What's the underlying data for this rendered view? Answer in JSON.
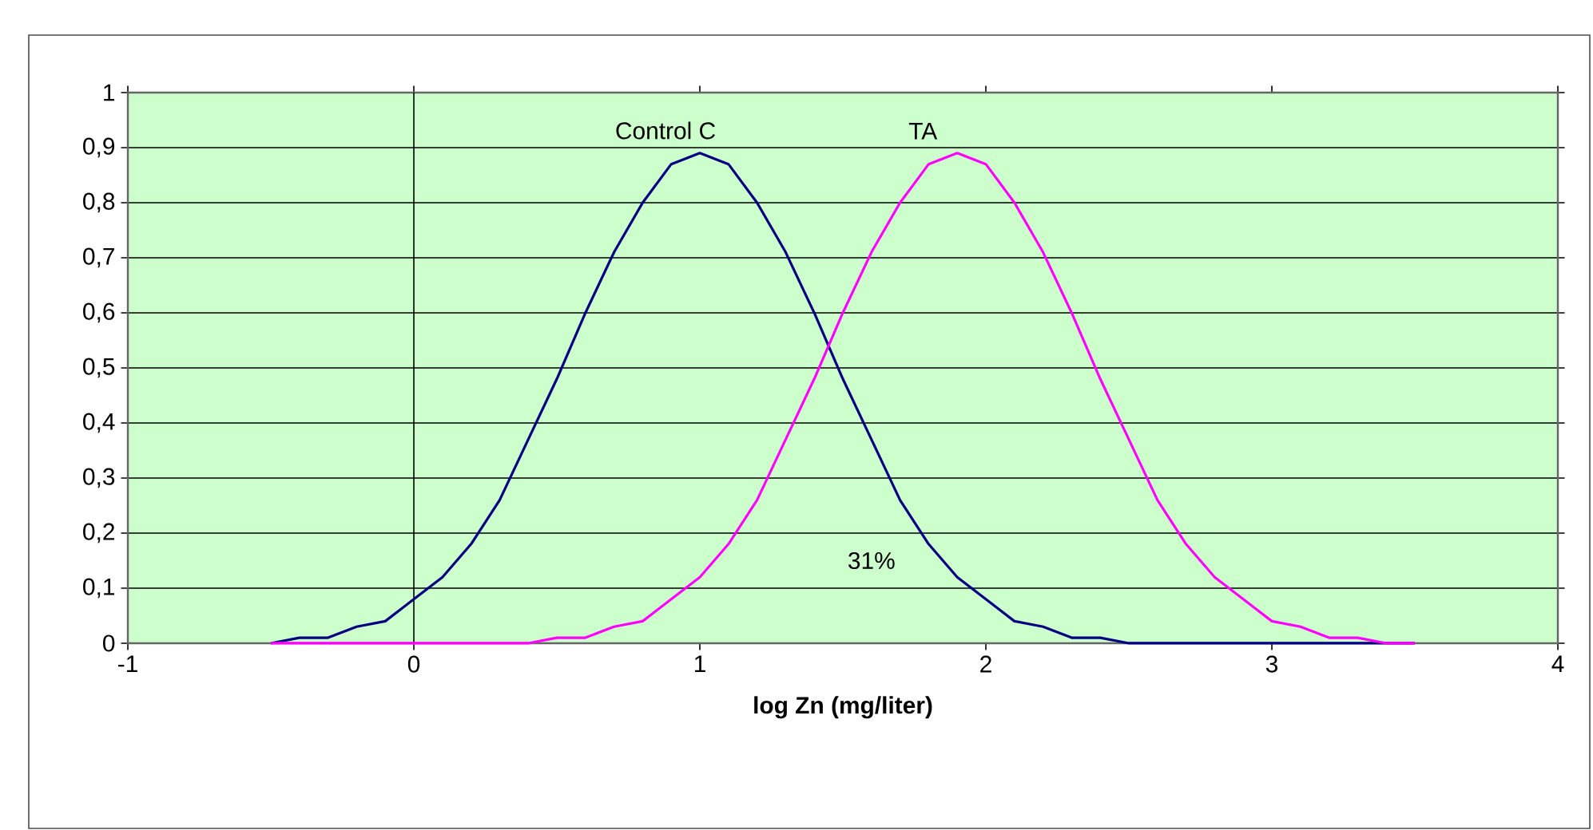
{
  "chart_data": {
    "type": "line",
    "xlabel": "log Zn (mg/liter)",
    "x": [
      -0.5,
      -0.4,
      -0.3,
      -0.2,
      -0.1,
      0,
      0.1,
      0.2,
      0.3,
      0.4,
      0.5,
      0.6,
      0.7,
      0.8,
      0.9,
      1.0,
      1.1,
      1.2,
      1.3,
      1.4,
      1.5,
      1.6,
      1.7,
      1.8,
      1.9,
      2.0,
      2.1,
      2.2,
      2.3,
      2.4,
      2.5,
      2.6,
      2.7,
      2.8,
      2.9,
      3.0,
      3.1,
      3.2,
      3.3,
      3.4,
      3.5
    ],
    "series": [
      {
        "name": "Control C",
        "color": "#000080",
        "values": [
          0,
          0.01,
          0.01,
          0.03,
          0.04,
          0.08,
          0.12,
          0.18,
          0.26,
          0.37,
          0.48,
          0.6,
          0.71,
          0.8,
          0.87,
          0.89,
          0.87,
          0.8,
          0.71,
          0.6,
          0.48,
          0.37,
          0.26,
          0.18,
          0.12,
          0.08,
          0.04,
          0.03,
          0.01,
          0.01,
          0,
          0,
          0,
          0,
          0,
          0,
          0,
          0,
          0,
          0,
          0
        ]
      },
      {
        "name": "TA",
        "color": "#ff00ff",
        "values": [
          0,
          0,
          0,
          0,
          0,
          0,
          0,
          0,
          0,
          0,
          0.01,
          0.01,
          0.03,
          0.04,
          0.08,
          0.12,
          0.18,
          0.26,
          0.37,
          0.48,
          0.6,
          0.71,
          0.8,
          0.87,
          0.89,
          0.87,
          0.8,
          0.71,
          0.6,
          0.48,
          0.37,
          0.26,
          0.18,
          0.12,
          0.08,
          0.04,
          0.03,
          0.01,
          0.01,
          0,
          0
        ]
      }
    ],
    "annotations": [
      "31%"
    ],
    "ref_lines": [
      {
        "axis": "x",
        "value": 0,
        "color": "#000000"
      }
    ],
    "xlim": [
      -1,
      4
    ],
    "xticks": [
      -1,
      0,
      1,
      2,
      3,
      4
    ],
    "ylim": [
      0,
      1
    ],
    "yticks": [
      0,
      {
        "value": 0.1,
        "label": "0,1"
      },
      {
        "value": 0.2,
        "label": "0,2"
      },
      {
        "value": 0.3,
        "label": "0,3"
      },
      {
        "value": 0.4,
        "label": "0,4"
      },
      {
        "value": 0.5,
        "label": "0,5"
      },
      {
        "value": 0.6,
        "label": "0,6"
      },
      {
        "value": 0.7,
        "label": "0,7"
      },
      {
        "value": 0.8,
        "label": "0,8"
      },
      {
        "value": 0.9,
        "label": "0,9"
      },
      1
    ],
    "grid": "y",
    "marker": "none",
    "line_style": "solid"
  }
}
